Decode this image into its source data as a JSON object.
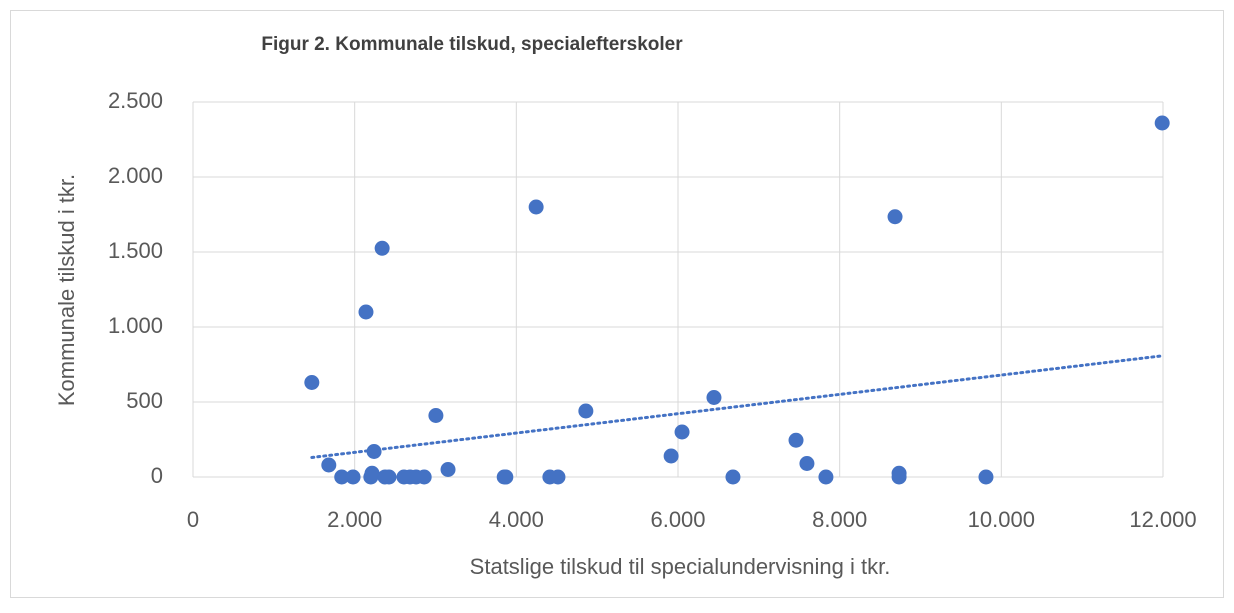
{
  "chart_data": {
    "type": "scatter",
    "title": "Figur 2. Kommunale tilskud, specialefterskoler",
    "x_label": "Statslige tilskud til specialundervisning i tkr.",
    "y_label": "Kommunale tilskud i tkr.",
    "color": "#4472c4",
    "trendline": "linear",
    "trendline_color": "#4472c4",
    "x": [
      1470,
      1680,
      1840,
      1980,
      2140,
      2200,
      2215,
      2240,
      2340,
      2375,
      2425,
      2610,
      2685,
      2760,
      2860,
      3005,
      3155,
      3850,
      3870,
      4245,
      4415,
      4515,
      4860,
      5915,
      6050,
      6445,
      6680,
      7460,
      7595,
      7830,
      8685,
      8735,
      8735,
      9810,
      11990
    ],
    "values": [
      630,
      80,
      0,
      0,
      1100,
      0,
      25,
      170,
      1525,
      0,
      0,
      0,
      0,
      0,
      0,
      410,
      50,
      0,
      0,
      1800,
      0,
      0,
      440,
      140,
      300,
      530,
      0,
      245,
      90,
      0,
      1735,
      25,
      0,
      0,
      2360
    ],
    "xlim": [
      0,
      12000
    ],
    "xticks": [
      0,
      {
        "value": 2000,
        "label": "2.000"
      },
      {
        "value": 4000,
        "label": "4.000"
      },
      {
        "value": 6000,
        "label": "6.000"
      },
      {
        "value": 8000,
        "label": "8.000"
      },
      {
        "value": 10000,
        "label": "10.000"
      },
      {
        "value": 12000,
        "label": "12.000"
      }
    ],
    "ylim": [
      0,
      2500
    ],
    "yticks": [
      0,
      500,
      {
        "value": 1000,
        "label": "1.000"
      },
      {
        "value": 1500,
        "label": "1.500"
      },
      {
        "value": 2000,
        "label": "2.000"
      },
      {
        "value": 2500,
        "label": "2.500"
      }
    ],
    "grid": true
  }
}
